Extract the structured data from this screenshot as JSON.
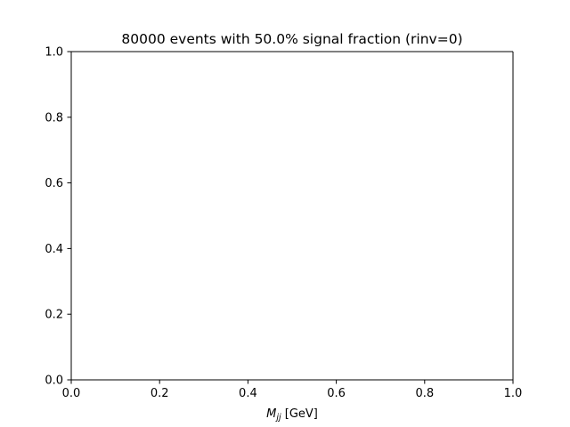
{
  "chart_data": {
    "type": "line",
    "title": "80000 events with 50.0% signal fraction (rinv=0)",
    "xlabel": {
      "symbol": "M",
      "subscript": "jj",
      "unit": " [GeV]"
    },
    "ylabel": "",
    "xlim": [
      0.0,
      1.0
    ],
    "ylim": [
      0.0,
      1.0
    ],
    "xticks": [
      "0.0",
      "0.2",
      "0.4",
      "0.6",
      "0.8",
      "1.0"
    ],
    "yticks": [
      "0.0",
      "0.2",
      "0.4",
      "0.6",
      "0.8",
      "1.0"
    ],
    "series": [],
    "grid": false,
    "legend": "none"
  }
}
